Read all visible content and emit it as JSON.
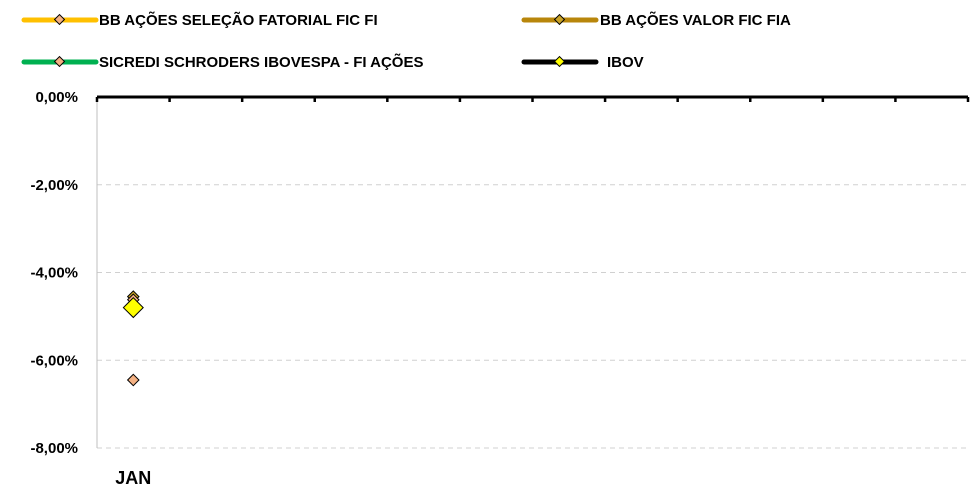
{
  "chart_data": {
    "type": "line",
    "categories": [
      "JAN"
    ],
    "ylim": [
      -0.08,
      0.0
    ],
    "yticks": [
      0.0,
      -0.02,
      -0.04,
      -0.06,
      -0.08
    ],
    "ytick_labels": [
      "0,00%",
      "-2,00%",
      "-4,00%",
      "-6,00%",
      "-8,00%"
    ],
    "x_slots": 12,
    "grid": true,
    "legend_position": "top",
    "series": [
      {
        "name": "BB AÇÕES SELEÇÃO FATORIAL FIC FI",
        "line_color": "#FFC000",
        "marker_color": "#F4B183",
        "values": [
          -0.0645
        ]
      },
      {
        "name": "BB AÇÕES VALOR FIC FIA",
        "line_color": "#B8860B",
        "marker_color": "#C9A227",
        "values": [
          -0.0455
        ]
      },
      {
        "name": "SICREDI SCHRODERS IBOVESPA - FI AÇÕES",
        "line_color": "#00B050",
        "marker_color": "#F4B183",
        "values": [
          -0.0462
        ]
      },
      {
        "name": "IBOV",
        "line_color": "#000000",
        "marker_color": "#FFFF00",
        "values": [
          -0.048
        ]
      }
    ]
  }
}
